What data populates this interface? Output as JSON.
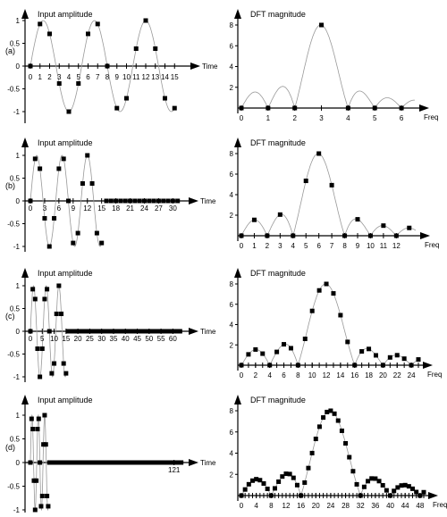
{
  "rows": [
    {
      "label": "(a)",
      "left": {
        "title": "Input amplitude",
        "xlabel": "Time",
        "xticks": [
          "0",
          "1",
          "2",
          "3",
          "4",
          "5",
          "6",
          "7",
          "8",
          "9",
          "10",
          "11",
          "12",
          "13",
          "14",
          "15"
        ],
        "yticks": [
          "1",
          "0.5",
          "0",
          "-0.5",
          "-1"
        ]
      },
      "right": {
        "title": "DFT magnitude",
        "xlabel": "Freq",
        "xticks": [
          "0",
          "1",
          "2",
          "3",
          "4",
          "5",
          "6"
        ],
        "yticks": [
          "8",
          "6",
          "4",
          "2"
        ]
      }
    },
    {
      "label": "(b)",
      "left": {
        "title": "Input amplitude",
        "xlabel": "Time",
        "xticks": [
          "0",
          "3",
          "6",
          "9",
          "12",
          "15",
          "18",
          "21",
          "24",
          "27",
          "30"
        ],
        "yticks": [
          "1",
          "0.5",
          "0",
          "-0.5",
          "-1"
        ]
      },
      "right": {
        "title": "DFT magnitude",
        "xlabel": "Freq",
        "xticks": [
          "0",
          "1",
          "2",
          "3",
          "4",
          "5",
          "6",
          "7",
          "8",
          "9",
          "10",
          "11",
          "12"
        ],
        "yticks": [
          "8",
          "6",
          "4",
          "2"
        ]
      }
    },
    {
      "label": "(c)",
      "left": {
        "title": "Input amplitude",
        "xlabel": "Time",
        "xticks": [
          "0",
          "5",
          "10",
          "15",
          "20",
          "25",
          "30",
          "35",
          "40",
          "45",
          "50",
          "55",
          "60"
        ],
        "yticks": [
          "1",
          "0.5",
          "0",
          "-0.5",
          "-1"
        ]
      },
      "right": {
        "title": "DFT magnitude",
        "xlabel": "Freq",
        "xticks": [
          "0",
          "2",
          "4",
          "6",
          "8",
          "10",
          "12",
          "14",
          "16",
          "18",
          "20",
          "22",
          "24"
        ],
        "yticks": [
          "8",
          "6",
          "4",
          "2"
        ]
      }
    },
    {
      "label": "(d)",
      "left": {
        "title": "Input amplitude",
        "xlabel": "Time",
        "xticks": [
          "121"
        ],
        "yticks": [
          "1",
          "0.5",
          "0",
          "-0.5",
          "-1"
        ]
      },
      "right": {
        "title": "DFT magnitude",
        "xlabel": "Freq",
        "xticks": [
          "0",
          "4",
          "8",
          "12",
          "16",
          "20",
          "24",
          "28",
          "32",
          "36",
          "40",
          "44",
          "48"
        ],
        "yticks": [
          "8",
          "6",
          "4",
          "2"
        ]
      }
    }
  ],
  "chart_data": [
    {
      "type": "scatter",
      "panel": "(a) input",
      "title": "Input amplitude",
      "xlabel": "Time",
      "ylim": [
        -1,
        1
      ],
      "xlim": [
        0,
        16
      ],
      "x": [
        0,
        1,
        2,
        3,
        4,
        5,
        6,
        7,
        8,
        9,
        10,
        11,
        12,
        13,
        14,
        15
      ],
      "y": [
        0,
        0.92,
        0.71,
        -0.38,
        -1,
        -0.38,
        0.71,
        0.92,
        0,
        -0.92,
        -0.71,
        0.38,
        1,
        0.38,
        -0.71,
        -0.92
      ],
      "curve": "sin(2*pi*3*t/16)"
    },
    {
      "type": "scatter",
      "panel": "(a) DFT",
      "title": "DFT magnitude",
      "xlabel": "Freq",
      "ylim": [
        0,
        8
      ],
      "xlim": [
        0,
        6.5
      ],
      "x": [
        0,
        1,
        2,
        3,
        4,
        5,
        6
      ],
      "y": [
        0,
        0,
        0,
        8,
        0,
        0,
        0
      ]
    },
    {
      "type": "scatter",
      "panel": "(b) input",
      "title": "Input amplitude",
      "xlabel": "Time",
      "ylim": [
        -1,
        1
      ],
      "xlim": [
        0,
        32
      ],
      "nonzero_samples": 16,
      "zero_padded_to": 32,
      "curve": "sin(2*pi*3*t/16) for t<16, 0 after"
    },
    {
      "type": "scatter",
      "panel": "(b) DFT",
      "title": "DFT magnitude",
      "xlabel": "Freq",
      "ylim": [
        0,
        8
      ],
      "xlim": [
        0,
        13
      ],
      "x": [
        0,
        1,
        2,
        3,
        4,
        5,
        6,
        7,
        8,
        9,
        10,
        11,
        12,
        13
      ],
      "y": [
        0.2,
        1.0,
        0.3,
        1.9,
        0.3,
        5.3,
        8.0,
        4.9,
        0.3,
        1.8,
        0.3,
        0.95,
        0.2,
        0.1
      ]
    },
    {
      "type": "scatter",
      "panel": "(c) input",
      "title": "Input amplitude",
      "xlabel": "Time",
      "ylim": [
        -1,
        1
      ],
      "xlim": [
        0,
        64
      ],
      "nonzero_samples": 16,
      "zero_padded_to": 64
    },
    {
      "type": "scatter",
      "panel": "(c) DFT",
      "title": "DFT magnitude",
      "xlabel": "Freq",
      "ylim": [
        0,
        8
      ],
      "xlim": [
        0,
        25
      ],
      "curve": "|DFT| of 16 nonzero samples zero-padded to 64, peak 8 at 12"
    },
    {
      "type": "scatter",
      "panel": "(d) input",
      "title": "Input amplitude",
      "xlabel": "Time",
      "ylim": [
        -1,
        1
      ],
      "xlim": [
        0,
        128
      ],
      "nonzero_samples": 16,
      "zero_padded_to": 128
    },
    {
      "type": "scatter",
      "panel": "(d) DFT",
      "title": "DFT magnitude",
      "xlabel": "Freq",
      "ylim": [
        0,
        8
      ],
      "xlim": [
        0,
        49
      ],
      "curve": "|DFT| of 16 nonzero samples zero-padded to 128, peak 8 at 24"
    }
  ]
}
